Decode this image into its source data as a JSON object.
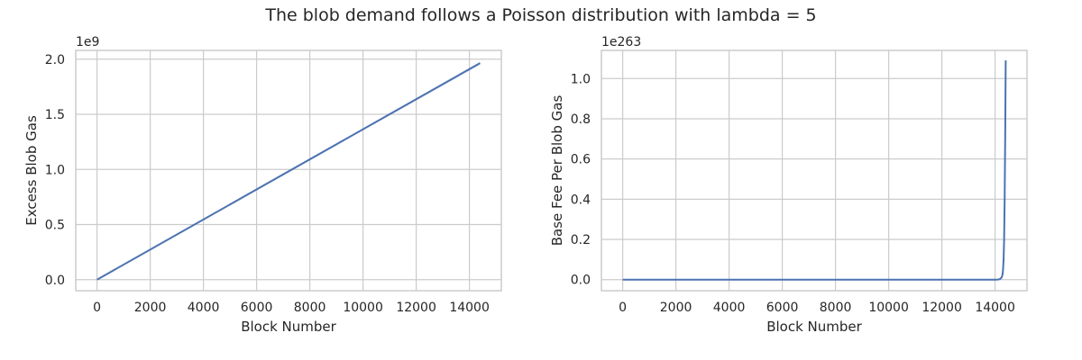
{
  "figure": {
    "suptitle": "The blob demand follows a Poisson distribution with lambda = 5"
  },
  "colors": {
    "series": "#4c72b0",
    "grid": "#cccccc",
    "text": "#262626"
  },
  "chart_data": [
    {
      "type": "line",
      "title": "",
      "xlabel": "Block Number",
      "ylabel": "Excess Blob Gas",
      "offset_label": "1e9",
      "xlim": [
        -800,
        15200
      ],
      "ylim": [
        -0.1,
        2.08
      ],
      "x_ticks": [
        0,
        2000,
        4000,
        6000,
        8000,
        10000,
        12000,
        14000
      ],
      "x_tick_labels": [
        "0",
        "2000",
        "4000",
        "6000",
        "8000",
        "10000",
        "12000",
        "14000"
      ],
      "y_ticks": [
        0,
        0.5,
        1.0,
        1.5,
        2.0
      ],
      "y_tick_labels": [
        "0.0",
        "0.5",
        "1.0",
        "1.5",
        "2.0"
      ],
      "grid": true,
      "series": [
        {
          "x": [
            0,
            14400
          ],
          "y": [
            0,
            1.965
          ],
          "band_upper": [
            0,
            1.975
          ],
          "band_lower": [
            0,
            1.95
          ]
        }
      ]
    },
    {
      "type": "line",
      "title": "",
      "xlabel": "Block Number",
      "ylabel": "Base Fee Per Blob Gas",
      "offset_label": "1e263",
      "xlim": [
        -800,
        15200
      ],
      "ylim": [
        -0.055,
        1.14
      ],
      "x_ticks": [
        0,
        2000,
        4000,
        6000,
        8000,
        10000,
        12000,
        14000
      ],
      "x_tick_labels": [
        "0",
        "2000",
        "4000",
        "6000",
        "8000",
        "10000",
        "12000",
        "14000"
      ],
      "y_ticks": [
        0,
        0.2,
        0.4,
        0.6,
        0.8,
        1.0
      ],
      "y_tick_labels": [
        "0.0",
        "0.2",
        "0.4",
        "0.6",
        "0.8",
        "1.0"
      ],
      "grid": true,
      "series": [
        {
          "x": [
            0,
            14000,
            14100,
            14150,
            14200,
            14250,
            14280,
            14300,
            14320,
            14340,
            14360,
            14380,
            14400
          ],
          "y": [
            0,
            0,
            0.0005,
            0.0015,
            0.004,
            0.012,
            0.025,
            0.05,
            0.1,
            0.2,
            0.4,
            0.7,
            1.09
          ]
        }
      ]
    }
  ]
}
